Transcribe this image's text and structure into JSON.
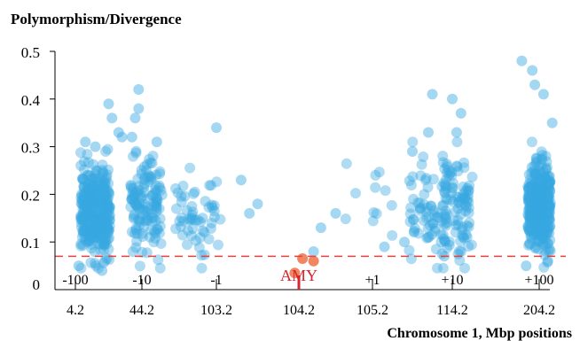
{
  "chart_data": {
    "type": "scatter",
    "title": "Polymorphism/Divergence",
    "xlabel": "Chromosome 1, Mbp positions",
    "ylabel": "",
    "ylim": [
      0,
      0.5
    ],
    "y_ticks": [
      "0",
      "0.1",
      "0.2",
      "0.3",
      "0.4",
      "0.5"
    ],
    "y_tick_values": [
      0,
      0.1,
      0.2,
      0.3,
      0.4,
      0.5
    ],
    "x_positions": [
      "4.2",
      "44.2",
      "103.2",
      "104.2",
      "105.2",
      "114.2",
      "204.2"
    ],
    "x_offsets": [
      "-100",
      "-10",
      "-1",
      "",
      "+1",
      "+10",
      "+100"
    ],
    "grid": false,
    "threshold": {
      "y": 0.07,
      "style": "dashed",
      "color": "#e8423f"
    },
    "highlight": {
      "label": "AMY",
      "x_index": 3,
      "color": "#d9232e"
    },
    "colors": {
      "points": "#36a7e0",
      "amy_points": "#ef7a4f",
      "axis": "#000000"
    },
    "series": [
      {
        "name": "",
        "clusters": [
          {
            "x_center": 0.3,
            "spread": 0.22,
            "n": 340,
            "y_mean": 0.165,
            "y_sd": 0.045,
            "outliers": [
              [
                0.5,
                0.39
              ],
              [
                0.55,
                0.36
              ],
              [
                0.65,
                0.33
              ],
              [
                0.15,
                0.31
              ],
              [
                0.3,
                0.3
              ],
              [
                0.4,
                0.04
              ],
              [
                0.05,
                0.05
              ]
            ]
          },
          {
            "x_center": 1.05,
            "spread": 0.22,
            "n": 130,
            "y_mean": 0.17,
            "y_sd": 0.05,
            "outliers": [
              [
                0.95,
                0.42
              ],
              [
                0.95,
                0.38
              ],
              [
                0.9,
                0.36
              ],
              [
                0.85,
                0.32
              ],
              [
                1.2,
                0.31
              ],
              [
                0.7,
                0.32
              ]
            ]
          },
          {
            "x_center": 1.75,
            "spread": 0.3,
            "n": 55,
            "y_mean": 0.15,
            "y_sd": 0.05,
            "outliers": [
              [
                2.0,
                0.34
              ],
              [
                2.3,
                0.23
              ],
              [
                2.5,
                0.18
              ],
              [
                2.4,
                0.16
              ]
            ]
          },
          {
            "x_center": 3.9,
            "spread": 0.35,
            "n": 12,
            "y_mean": 0.17,
            "y_sd": 0.06,
            "outliers": [
              [
                3.2,
                0.08
              ],
              [
                3.3,
                0.13
              ],
              [
                3.5,
                0.16
              ]
            ]
          },
          {
            "x_center": 4.7,
            "spread": 0.25,
            "n": 70,
            "y_mean": 0.16,
            "y_sd": 0.05,
            "outliers": [
              [
                4.5,
                0.29
              ],
              [
                4.7,
                0.33
              ],
              [
                4.15,
                0.09
              ],
              [
                4.4,
                0.1
              ]
            ]
          },
          {
            "x_center": 5.05,
            "spread": 0.18,
            "n": 90,
            "y_mean": 0.175,
            "y_sd": 0.055,
            "outliers": [
              [
                4.75,
                0.41
              ],
              [
                5.0,
                0.4
              ],
              [
                5.05,
                0.33
              ],
              [
                5.1,
                0.37
              ],
              [
                4.9,
                0.07
              ],
              [
                5.1,
                0.08
              ]
            ]
          },
          {
            "x_center": 6.0,
            "spread": 0.13,
            "n": 420,
            "y_mean": 0.175,
            "y_sd": 0.045,
            "outliers": [
              [
                5.8,
                0.48
              ],
              [
                5.92,
                0.46
              ],
              [
                5.95,
                0.43
              ],
              [
                6.05,
                0.41
              ],
              [
                6.15,
                0.35
              ],
              [
                5.85,
                0.05
              ],
              [
                6.1,
                0.06
              ]
            ]
          }
        ]
      }
    ],
    "amy_points": [
      [
        3.05,
        0.065
      ],
      [
        3.2,
        0.06
      ],
      [
        2.95,
        0.035
      ]
    ]
  }
}
